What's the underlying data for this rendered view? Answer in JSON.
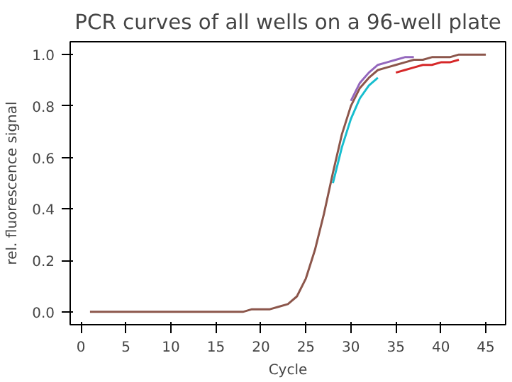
{
  "chart_data": {
    "type": "line",
    "title": "PCR curves of all wells on a 96-well plate",
    "xlabel": "Cycle",
    "ylabel": "rel. fluorescence signal",
    "x": [
      1,
      2,
      3,
      4,
      5,
      6,
      7,
      8,
      9,
      10,
      11,
      12,
      13,
      14,
      15,
      16,
      17,
      18,
      19,
      20,
      21,
      22,
      23,
      24,
      25,
      26,
      27,
      28,
      29,
      30,
      31,
      32,
      33,
      34,
      35,
      36,
      37,
      38,
      39,
      40,
      41,
      42,
      43,
      44,
      45
    ],
    "series": [
      {
        "color": "#d62728",
        "values": [
          null,
          null,
          null,
          null,
          null,
          null,
          null,
          null,
          null,
          null,
          null,
          null,
          null,
          null,
          null,
          null,
          null,
          null,
          null,
          null,
          null,
          null,
          null,
          null,
          null,
          null,
          null,
          null,
          null,
          null,
          null,
          null,
          null,
          null,
          0.93,
          0.94,
          0.95,
          0.96,
          0.96,
          0.97,
          0.97,
          0.98,
          null,
          null,
          null
        ]
      },
      {
        "color": "#17becf",
        "values": [
          null,
          null,
          null,
          null,
          null,
          null,
          null,
          null,
          null,
          null,
          null,
          null,
          null,
          null,
          null,
          null,
          null,
          null,
          null,
          null,
          null,
          null,
          null,
          null,
          null,
          null,
          null,
          0.5,
          0.64,
          0.75,
          0.83,
          0.88,
          0.91,
          null,
          null,
          null,
          null,
          null,
          null,
          null,
          null,
          null,
          null,
          null,
          null
        ]
      },
      {
        "color": "#9467bd",
        "values": [
          null,
          null,
          null,
          null,
          null,
          null,
          null,
          null,
          null,
          null,
          null,
          null,
          null,
          null,
          null,
          null,
          null,
          null,
          null,
          null,
          null,
          null,
          null,
          null,
          null,
          null,
          null,
          null,
          null,
          0.82,
          0.89,
          0.93,
          0.96,
          0.97,
          0.98,
          0.99,
          0.99,
          null,
          null,
          null,
          null,
          null,
          null,
          null,
          null
        ]
      },
      {
        "color": "#8c564b",
        "values": [
          0,
          0,
          0,
          0,
          0,
          0,
          0,
          0,
          0,
          0,
          0,
          0,
          0,
          0,
          0,
          0,
          0,
          0,
          0.01,
          0.01,
          0.01,
          0.02,
          0.03,
          0.06,
          0.13,
          0.24,
          0.38,
          0.54,
          0.69,
          0.8,
          0.87,
          0.91,
          0.94,
          0.95,
          0.96,
          0.97,
          0.98,
          0.98,
          0.99,
          0.99,
          0.99,
          1.0,
          1.0,
          1.0,
          1.0
        ]
      }
    ],
    "xlim": [
      -1.2,
      47.2
    ],
    "ylim": [
      -0.05,
      1.05
    ],
    "xticks": [
      0,
      5,
      10,
      15,
      20,
      25,
      30,
      35,
      40,
      45
    ],
    "yticks": [
      {
        "value": 0,
        "label": "0.0"
      },
      {
        "value": 0.2,
        "label": "0.2"
      },
      {
        "value": 0.4,
        "label": "0.4"
      },
      {
        "value": 0.6,
        "label": "0.6"
      },
      {
        "value": 0.8,
        "label": "0.8"
      },
      {
        "value": 1,
        "label": "1.0"
      }
    ],
    "grid": false,
    "marker": "none",
    "line_style": "solid"
  }
}
